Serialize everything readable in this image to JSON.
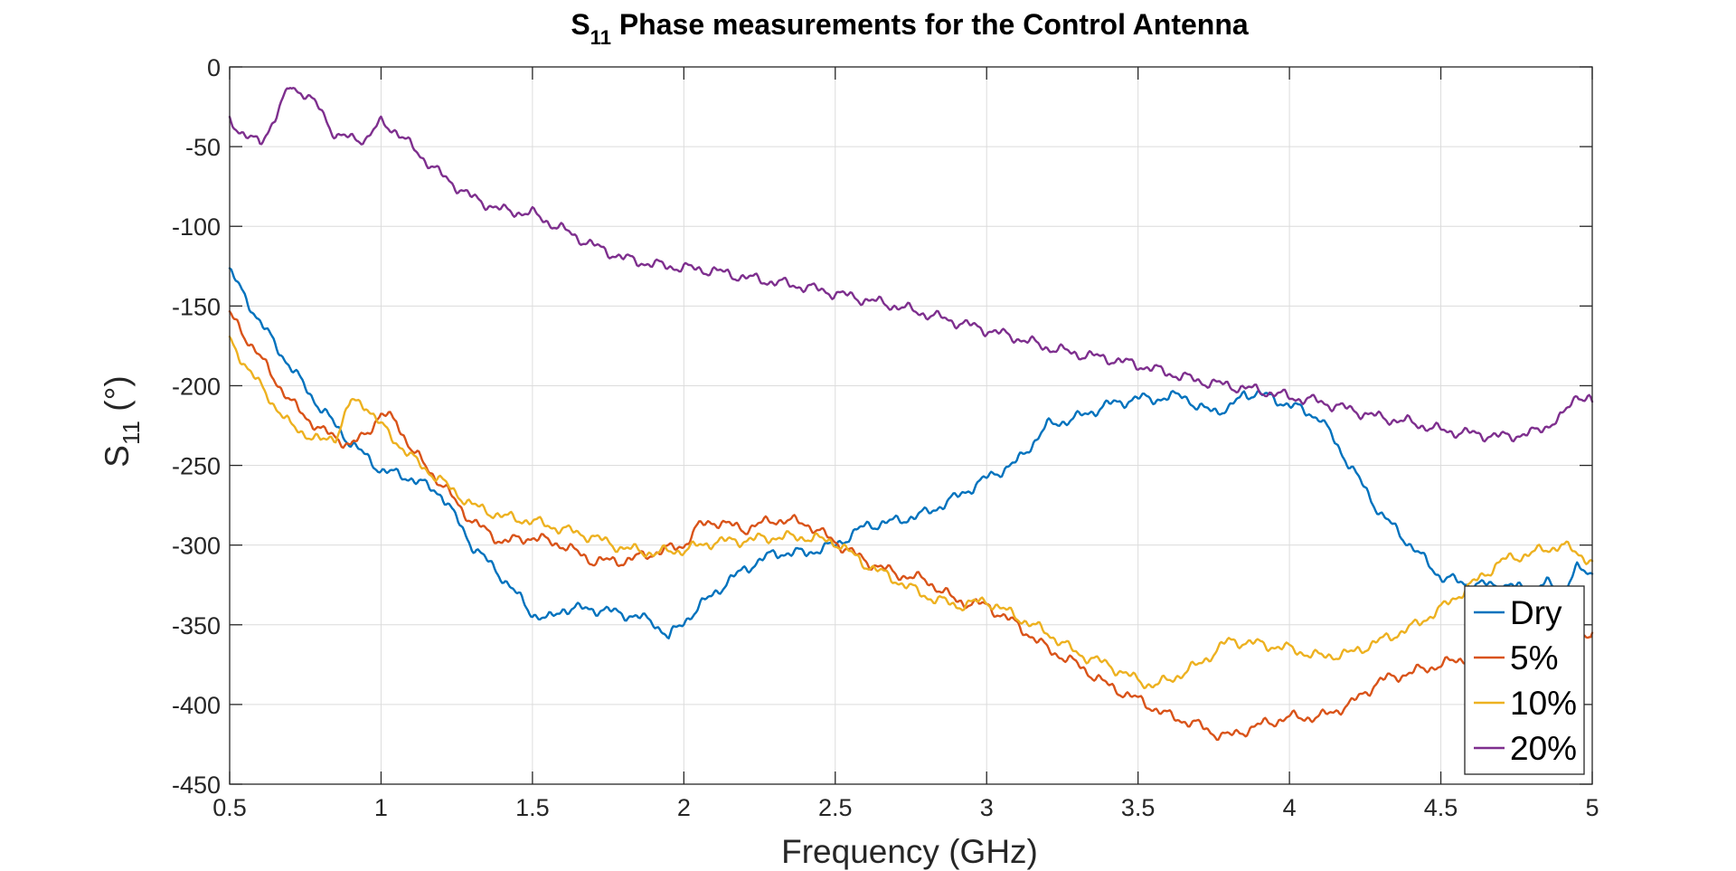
{
  "chart_data": {
    "type": "line",
    "title": {
      "main": "S",
      "sub": "11",
      "rest": " Phase measurements for the Control Antenna"
    },
    "xlabel": "Frequency (GHz)",
    "ylabel": {
      "main": "S",
      "sub": "11",
      "rest": " (°)"
    },
    "xlim": [
      0.5,
      5
    ],
    "ylim": [
      -450,
      0
    ],
    "xticks": [
      0.5,
      1,
      1.5,
      2,
      2.5,
      3,
      3.5,
      4,
      4.5,
      5
    ],
    "xtick_labels": [
      "0.5",
      "1",
      "1.5",
      "2",
      "2.5",
      "3",
      "3.5",
      "4",
      "4.5",
      "5"
    ],
    "yticks": [
      0,
      -50,
      -100,
      -150,
      -200,
      -250,
      -300,
      -350,
      -400,
      -450
    ],
    "ytick_labels": [
      "0",
      "-50",
      "-100",
      "-150",
      "-200",
      "-250",
      "-300",
      "-350",
      "-400",
      "-450"
    ],
    "grid": true,
    "legend_position": "bottom-right",
    "series": [
      {
        "name": "Dry",
        "color": "#0072BD",
        "x": [
          0.5,
          0.6,
          0.7,
          0.8,
          0.9,
          1.0,
          1.1,
          1.2,
          1.3,
          1.4,
          1.5,
          1.55,
          1.6,
          1.7,
          1.8,
          1.9,
          1.95,
          2.0,
          2.1,
          2.2,
          2.3,
          2.4,
          2.5,
          2.6,
          2.7,
          2.8,
          2.9,
          3.0,
          3.1,
          3.2,
          3.3,
          3.4,
          3.5,
          3.6,
          3.65,
          3.7,
          3.8,
          3.85,
          3.9,
          4.0,
          4.1,
          4.2,
          4.3,
          4.4,
          4.5,
          4.6,
          4.7,
          4.8,
          4.85,
          4.9,
          4.95,
          5.0
        ],
        "y": [
          -128,
          -160,
          -188,
          -214,
          -236,
          -253,
          -258,
          -268,
          -300,
          -320,
          -343,
          -347,
          -340,
          -340,
          -343,
          -348,
          -358,
          -348,
          -330,
          -315,
          -305,
          -305,
          -300,
          -288,
          -285,
          -280,
          -270,
          -258,
          -248,
          -225,
          -220,
          -212,
          -208,
          -208,
          -205,
          -215,
          -215,
          -205,
          -205,
          -212,
          -220,
          -250,
          -280,
          -300,
          -320,
          -325,
          -325,
          -328,
          -324,
          -330,
          -315,
          -318
        ]
      },
      {
        "name": "5%",
        "color": "#D95319",
        "x": [
          0.5,
          0.6,
          0.7,
          0.8,
          0.85,
          0.9,
          0.95,
          1.0,
          1.05,
          1.1,
          1.2,
          1.3,
          1.4,
          1.5,
          1.6,
          1.7,
          1.8,
          1.9,
          2.0,
          2.05,
          2.1,
          2.2,
          2.3,
          2.4,
          2.5,
          2.6,
          2.7,
          2.8,
          2.9,
          3.0,
          3.1,
          3.2,
          3.3,
          3.4,
          3.5,
          3.6,
          3.7,
          3.75,
          3.8,
          3.9,
          4.0,
          4.1,
          4.2,
          4.3,
          4.4,
          4.5,
          4.6,
          4.7,
          4.8,
          4.9,
          5.0
        ],
        "y": [
          -155,
          -182,
          -210,
          -228,
          -232,
          -238,
          -230,
          -218,
          -222,
          -240,
          -262,
          -285,
          -298,
          -295,
          -300,
          -310,
          -310,
          -305,
          -300,
          -288,
          -285,
          -290,
          -284,
          -286,
          -298,
          -310,
          -318,
          -322,
          -335,
          -338,
          -350,
          -365,
          -375,
          -388,
          -397,
          -407,
          -413,
          -418,
          -420,
          -413,
          -408,
          -408,
          -400,
          -385,
          -380,
          -375,
          -370,
          -370,
          -367,
          -362,
          -355
        ]
      },
      {
        "name": "10%",
        "color": "#EDB120",
        "x": [
          0.5,
          0.6,
          0.7,
          0.8,
          0.85,
          0.9,
          0.95,
          1.0,
          1.1,
          1.2,
          1.3,
          1.4,
          1.5,
          1.6,
          1.7,
          1.8,
          1.9,
          2.0,
          2.1,
          2.2,
          2.3,
          2.4,
          2.5,
          2.6,
          2.7,
          2.8,
          2.9,
          3.0,
          3.1,
          3.2,
          3.3,
          3.4,
          3.5,
          3.55,
          3.6,
          3.7,
          3.8,
          3.9,
          4.0,
          4.1,
          4.2,
          4.3,
          4.4,
          4.5,
          4.6,
          4.7,
          4.8,
          4.9,
          5.0
        ],
        "y": [
          -172,
          -200,
          -225,
          -235,
          -232,
          -210,
          -212,
          -225,
          -245,
          -260,
          -275,
          -282,
          -285,
          -290,
          -295,
          -302,
          -305,
          -303,
          -298,
          -297,
          -295,
          -295,
          -298,
          -312,
          -322,
          -332,
          -338,
          -335,
          -345,
          -355,
          -368,
          -375,
          -385,
          -388,
          -385,
          -375,
          -360,
          -362,
          -365,
          -370,
          -368,
          -360,
          -352,
          -340,
          -325,
          -310,
          -305,
          -300,
          -310
        ]
      },
      {
        "name": "20%",
        "color": "#7E2F8E",
        "x": [
          0.5,
          0.55,
          0.6,
          0.65,
          0.7,
          0.75,
          0.8,
          0.85,
          0.9,
          0.95,
          1.0,
          1.05,
          1.1,
          1.2,
          1.3,
          1.4,
          1.5,
          1.6,
          1.7,
          1.8,
          1.9,
          2.0,
          2.1,
          2.2,
          2.3,
          2.4,
          2.5,
          2.6,
          2.7,
          2.8,
          2.9,
          3.0,
          3.1,
          3.2,
          3.3,
          3.4,
          3.5,
          3.6,
          3.7,
          3.8,
          3.9,
          4.0,
          4.1,
          4.2,
          4.3,
          4.4,
          4.5,
          4.6,
          4.7,
          4.8,
          4.9,
          4.95,
          5.0
        ],
        "y": [
          -33,
          -43,
          -48,
          -32,
          -12,
          -17,
          -27,
          -43,
          -45,
          -45,
          -35,
          -40,
          -50,
          -68,
          -82,
          -90,
          -92,
          -102,
          -112,
          -120,
          -124,
          -126,
          -128,
          -132,
          -135,
          -138,
          -142,
          -146,
          -150,
          -155,
          -160,
          -165,
          -170,
          -176,
          -180,
          -183,
          -187,
          -192,
          -197,
          -200,
          -203,
          -207,
          -210,
          -215,
          -220,
          -223,
          -228,
          -230,
          -232,
          -230,
          -220,
          -205,
          -210
        ]
      }
    ]
  }
}
